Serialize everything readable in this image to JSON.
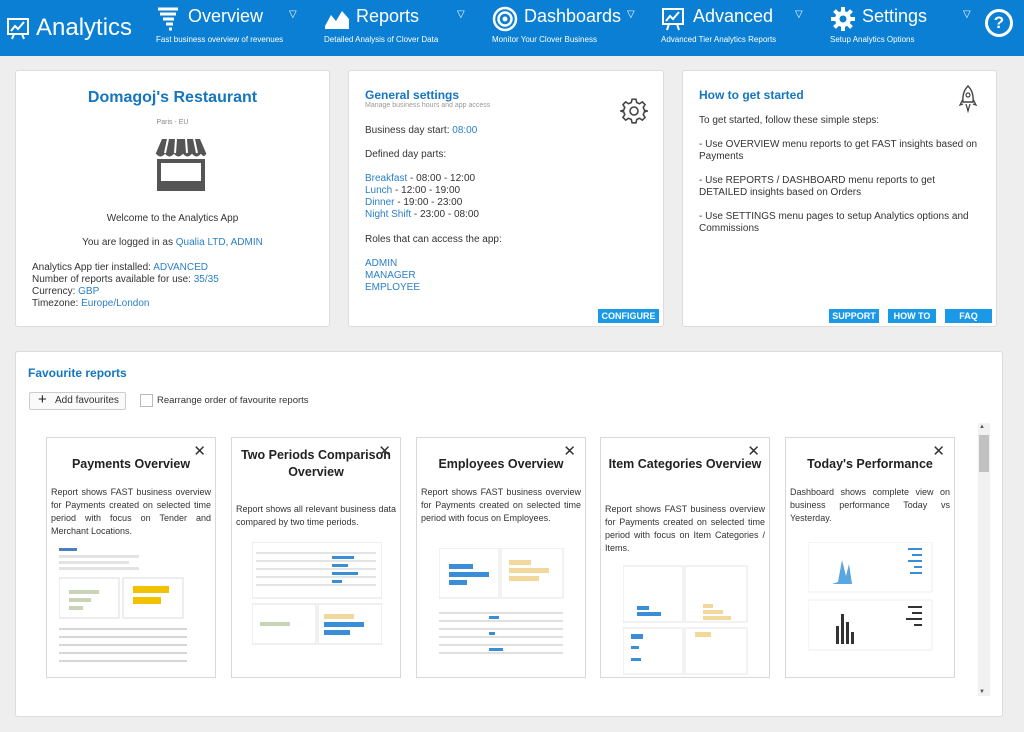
{
  "header": {
    "brand": "Analytics",
    "nav": [
      {
        "title": "Overview",
        "subtitle": "Fast business overview of revenues"
      },
      {
        "title": "Reports",
        "subtitle": "Detailed Analysis of Clover Data"
      },
      {
        "title": "Dashboards",
        "subtitle": "Monitor Your Clover Business"
      },
      {
        "title": "Advanced",
        "subtitle": "Advanced Tier Analytics Reports"
      },
      {
        "title": "Settings",
        "subtitle": "Setup Analytics Options"
      }
    ],
    "help": "?"
  },
  "restaurant": {
    "name": "Domagoj's Restaurant",
    "location": "Paris - EU",
    "welcome": "Welcome to the Analytics App",
    "logged_prefix": "You are logged in as ",
    "logged_user": "Qualia LTD, ADMIN",
    "tier_label": "Analytics App tier installed: ",
    "tier_value": "ADVANCED",
    "reports_label": "Number of reports available for use: ",
    "reports_value": "35/35",
    "currency_label": "Currency: ",
    "currency_value": "GBP",
    "timezone_label": "Timezone: ",
    "timezone_value": "Europe/London"
  },
  "general": {
    "title": "General settings",
    "subtitle": "Manage business hours and app access",
    "day_start_label": "Business day start: ",
    "day_start_value": "08:00",
    "dayparts_label": "Defined day parts:",
    "dayparts": [
      {
        "name": "Breakfast",
        "time": " - 08:00 - 12:00"
      },
      {
        "name": "Lunch",
        "time": " - 12:00 - 19:00"
      },
      {
        "name": "Dinner",
        "time": " - 19:00 - 23:00"
      },
      {
        "name": "Night Shift",
        "time": " - 23:00 - 08:00"
      }
    ],
    "roles_label": "Roles that can access the app:",
    "roles": [
      "ADMIN",
      "MANAGER",
      "EMPLOYEE"
    ],
    "configure": "CONFIGURE"
  },
  "howto": {
    "title": "How to get started",
    "intro": "To get started, follow these simple steps:",
    "steps": [
      "- Use OVERVIEW menu reports to get FAST insights based on Payments",
      "- Use REPORTS / DASHBOARD menu reports to get DETAILED insights based on Orders",
      "- Use SETTINGS menu pages to setup Analytics options and Commissions"
    ],
    "support": "SUPPORT",
    "howto_btn": "HOW TO",
    "faq": "FAQ"
  },
  "favourites": {
    "title": "Favourite reports",
    "add": "Add favourites",
    "rearrange": "Rearrange order of favourite reports",
    "rearrange_checked": false,
    "cards": [
      {
        "title": "Payments Overview",
        "desc": "Report shows FAST business overview for Payments created on selected time period with focus on Tender and Merchant Locations."
      },
      {
        "title": "Two Periods Comparison Overview",
        "desc": "Report shows all relevant business data compared by two time periods."
      },
      {
        "title": "Employees Overview",
        "desc": "Report shows FAST business overview for Payments created on selected time period with focus on Employees."
      },
      {
        "title": "Item Categories Overview",
        "desc": "Report shows FAST business overview for Payments created on selected time period with focus on Item Categories / Items."
      },
      {
        "title": "Today's Performance",
        "desc": "Dashboard shows complete view on business performance Today vs Yesterday."
      }
    ]
  },
  "colors": {
    "header": "#0a7fd4",
    "accent": "#1576c0",
    "link": "#2a7fc8",
    "button": "#1a9ae6"
  },
  "icons": [
    "analytics-logo-icon",
    "tornado-icon",
    "mountain-chart-icon",
    "target-icon",
    "presentation-chart-icon",
    "gear-icon",
    "help-icon",
    "shop-icon",
    "rocket-icon",
    "close-icon",
    "plus-icon"
  ]
}
